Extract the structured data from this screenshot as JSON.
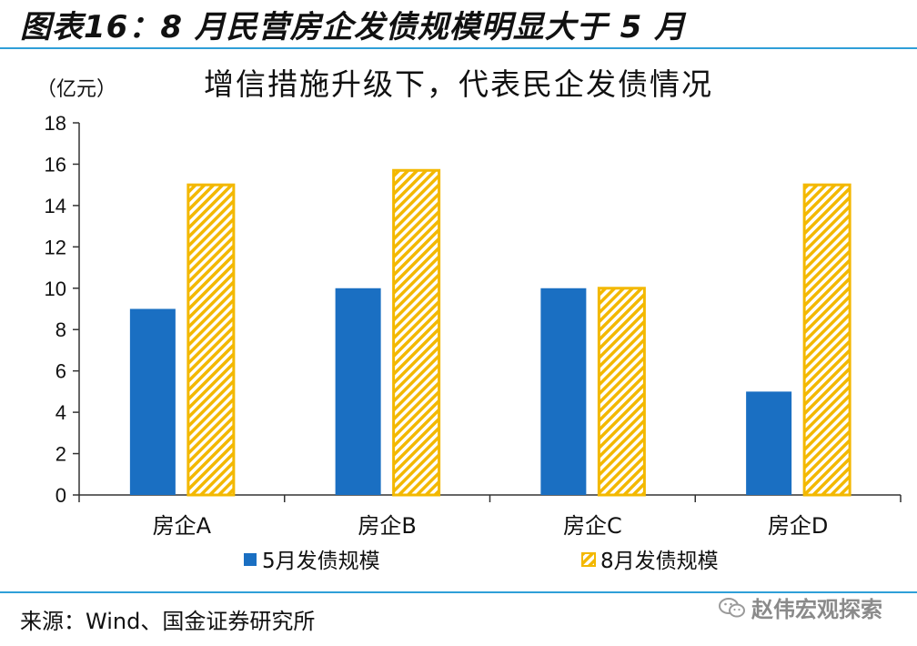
{
  "figure_title": "图表16：8 月民营房企发债规模明显大于 5 月",
  "source": "来源：Wind、国金证券研究所",
  "brand": "赵伟宏观探索",
  "colors": {
    "series1": "#1a6fc2",
    "series2_stripe": "#f3b800",
    "rule": "#2f9fd8"
  },
  "chart_data": {
    "type": "bar",
    "title": "增信措施升级下，代表民企发债情况",
    "unit_label": "（亿元）",
    "categories": [
      "房企A",
      "房企B",
      "房企C",
      "房企D"
    ],
    "series": [
      {
        "name": "5月发债规模",
        "values": [
          9,
          10,
          10,
          5
        ]
      },
      {
        "name": "8月发债规模",
        "values": [
          15,
          15.7,
          10,
          15
        ]
      }
    ],
    "ylim": [
      0,
      18
    ],
    "yticks": [
      0,
      2,
      4,
      6,
      8,
      10,
      12,
      14,
      16,
      18
    ],
    "legend_position": "bottom"
  }
}
